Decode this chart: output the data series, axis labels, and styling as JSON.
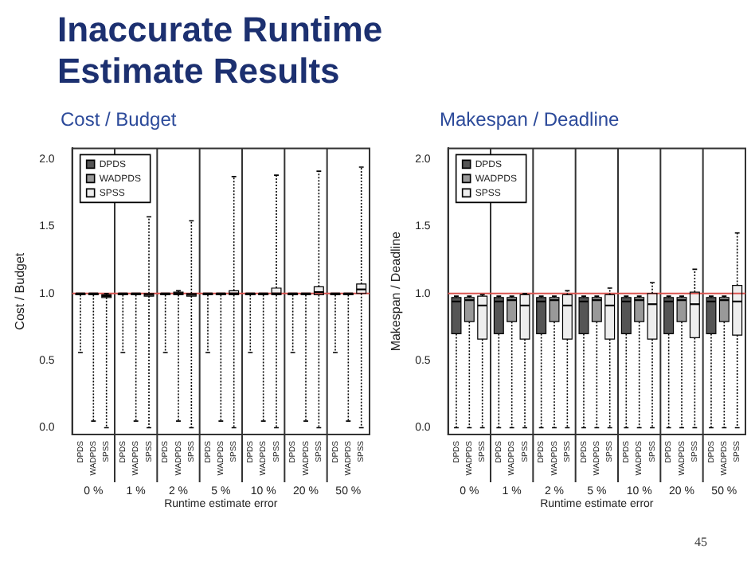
{
  "chart_data": [
    {
      "type": "box",
      "title": "Inaccurate Runtime Estimate Results",
      "subtitle": "Cost / Budget",
      "xlabel": "Runtime estimate error",
      "ylabel": "Cost / Budget",
      "categories": [
        "0 %",
        "1 %",
        "2 %",
        "5 %",
        "10 %",
        "20 %",
        "50 %"
      ],
      "series": [
        {
          "name": "DPDS",
          "color": "#555555",
          "boxes": [
            {
              "low": 0.56,
              "q1": 0.99,
              "median": 1.0,
              "q3": 1.0,
              "high": 1.0
            },
            {
              "low": 0.56,
              "q1": 0.99,
              "median": 1.0,
              "q3": 1.0,
              "high": 1.0
            },
            {
              "low": 0.56,
              "q1": 0.99,
              "median": 1.0,
              "q3": 1.0,
              "high": 1.0
            },
            {
              "low": 0.56,
              "q1": 0.99,
              "median": 1.0,
              "q3": 1.0,
              "high": 1.0
            },
            {
              "low": 0.56,
              "q1": 0.99,
              "median": 1.0,
              "q3": 1.0,
              "high": 1.0
            },
            {
              "low": 0.56,
              "q1": 0.99,
              "median": 1.0,
              "q3": 1.0,
              "high": 1.0
            },
            {
              "low": 0.56,
              "q1": 0.99,
              "median": 1.0,
              "q3": 1.0,
              "high": 1.0
            }
          ]
        },
        {
          "name": "WADPDS",
          "color": "#999999",
          "boxes": [
            {
              "low": 0.05,
              "q1": 0.99,
              "median": 1.0,
              "q3": 1.0,
              "high": 1.0
            },
            {
              "low": 0.05,
              "q1": 0.99,
              "median": 1.0,
              "q3": 1.0,
              "high": 1.0
            },
            {
              "low": 0.05,
              "q1": 0.99,
              "median": 1.0,
              "q3": 1.01,
              "high": 1.02
            },
            {
              "low": 0.05,
              "q1": 0.99,
              "median": 1.0,
              "q3": 1.0,
              "high": 1.0
            },
            {
              "low": 0.05,
              "q1": 0.99,
              "median": 1.0,
              "q3": 1.0,
              "high": 1.0
            },
            {
              "low": 0.05,
              "q1": 0.99,
              "median": 1.0,
              "q3": 1.0,
              "high": 1.0
            },
            {
              "low": 0.05,
              "q1": 0.99,
              "median": 1.0,
              "q3": 1.0,
              "high": 1.0
            }
          ]
        },
        {
          "name": "SPSS",
          "color": "#eeeeee",
          "boxes": [
            {
              "low": 0.0,
              "q1": 0.97,
              "median": 0.98,
              "q3": 0.99,
              "high": 1.0
            },
            {
              "low": 0.0,
              "q1": 0.98,
              "median": 0.99,
              "q3": 1.0,
              "high": 1.57
            },
            {
              "low": 0.0,
              "q1": 0.98,
              "median": 0.99,
              "q3": 1.0,
              "high": 1.54
            },
            {
              "low": 0.0,
              "q1": 0.99,
              "median": 1.0,
              "q3": 1.02,
              "high": 1.87
            },
            {
              "low": 0.0,
              "q1": 0.99,
              "median": 1.0,
              "q3": 1.04,
              "high": 1.88
            },
            {
              "low": 0.0,
              "q1": 0.99,
              "median": 1.01,
              "q3": 1.05,
              "high": 1.91
            },
            {
              "low": 0.0,
              "q1": 1.0,
              "median": 1.03,
              "q3": 1.07,
              "high": 1.94
            }
          ]
        }
      ],
      "ylim": [
        -0.05,
        2.08
      ],
      "yticks": [
        {
          "value": 0,
          "label": "0.0"
        },
        {
          "value": 0.5,
          "label": "0.5"
        },
        {
          "value": 1,
          "label": "1.0"
        },
        {
          "value": 1.5,
          "label": "1.5"
        },
        {
          "value": 2,
          "label": "2.0"
        }
      ],
      "ref_lines": [
        {
          "axis": "y",
          "value": 1,
          "color": "#d9534f"
        }
      ],
      "legend": "top left",
      "grid": "x"
    },
    {
      "type": "box",
      "subtitle": "Makespan / Deadline",
      "xlabel": "Runtime estimate error",
      "ylabel": "Makespan / Deadline",
      "categories": [
        "0 %",
        "1 %",
        "2 %",
        "5 %",
        "10 %",
        "20 %",
        "50 %"
      ],
      "series": [
        {
          "name": "DPDS",
          "color": "#555555",
          "boxes": [
            {
              "low": 0.0,
              "q1": 0.7,
              "median": 0.94,
              "q3": 0.97,
              "high": 0.98
            },
            {
              "low": 0.0,
              "q1": 0.7,
              "median": 0.94,
              "q3": 0.97,
              "high": 0.98
            },
            {
              "low": 0.0,
              "q1": 0.7,
              "median": 0.94,
              "q3": 0.97,
              "high": 0.98
            },
            {
              "low": 0.0,
              "q1": 0.7,
              "median": 0.94,
              "q3": 0.97,
              "high": 0.98
            },
            {
              "low": 0.0,
              "q1": 0.7,
              "median": 0.94,
              "q3": 0.97,
              "high": 0.98
            },
            {
              "low": 0.0,
              "q1": 0.7,
              "median": 0.94,
              "q3": 0.97,
              "high": 0.98
            },
            {
              "low": 0.0,
              "q1": 0.7,
              "median": 0.94,
              "q3": 0.97,
              "high": 0.98
            }
          ]
        },
        {
          "name": "WADPDS",
          "color": "#999999",
          "boxes": [
            {
              "low": 0.0,
              "q1": 0.79,
              "median": 0.95,
              "q3": 0.97,
              "high": 0.98
            },
            {
              "low": 0.0,
              "q1": 0.79,
              "median": 0.95,
              "q3": 0.97,
              "high": 0.98
            },
            {
              "low": 0.0,
              "q1": 0.79,
              "median": 0.95,
              "q3": 0.97,
              "high": 0.98
            },
            {
              "low": 0.0,
              "q1": 0.79,
              "median": 0.95,
              "q3": 0.97,
              "high": 0.98
            },
            {
              "low": 0.0,
              "q1": 0.79,
              "median": 0.95,
              "q3": 0.97,
              "high": 0.98
            },
            {
              "low": 0.0,
              "q1": 0.79,
              "median": 0.95,
              "q3": 0.97,
              "high": 0.98
            },
            {
              "low": 0.0,
              "q1": 0.79,
              "median": 0.95,
              "q3": 0.97,
              "high": 0.98
            }
          ]
        },
        {
          "name": "SPSS",
          "color": "#eeeeee",
          "boxes": [
            {
              "low": 0.0,
              "q1": 0.66,
              "median": 0.91,
              "q3": 0.98,
              "high": 0.99
            },
            {
              "low": 0.0,
              "q1": 0.66,
              "median": 0.91,
              "q3": 0.99,
              "high": 1.0
            },
            {
              "low": 0.0,
              "q1": 0.66,
              "median": 0.91,
              "q3": 0.99,
              "high": 1.02
            },
            {
              "low": 0.0,
              "q1": 0.66,
              "median": 0.91,
              "q3": 0.99,
              "high": 1.04
            },
            {
              "low": 0.0,
              "q1": 0.66,
              "median": 0.92,
              "q3": 1.0,
              "high": 1.08
            },
            {
              "low": 0.0,
              "q1": 0.67,
              "median": 0.92,
              "q3": 1.01,
              "high": 1.18
            },
            {
              "low": 0.0,
              "q1": 0.69,
              "median": 0.94,
              "q3": 1.06,
              "high": 1.45
            }
          ]
        }
      ],
      "ylim": [
        -0.05,
        2.08
      ],
      "yticks": [
        {
          "value": 0,
          "label": "0.0"
        },
        {
          "value": 0.5,
          "label": "0.5"
        },
        {
          "value": 1,
          "label": "1.0"
        },
        {
          "value": 1.5,
          "label": "1.5"
        },
        {
          "value": 2,
          "label": "2.0"
        }
      ],
      "ref_lines": [
        {
          "axis": "y",
          "value": 1,
          "color": "#d9534f"
        }
      ],
      "legend": "top left",
      "grid": "x",
      "annotations": [
        "45"
      ]
    }
  ]
}
